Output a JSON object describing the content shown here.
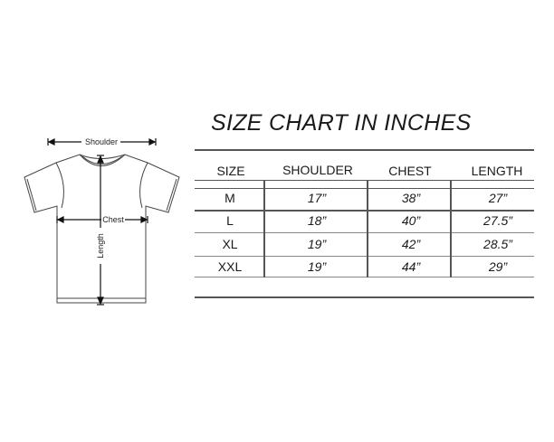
{
  "title": "SIZE CHART IN INCHES",
  "diagram": {
    "shoulder_label": "Shoulder",
    "chest_label": "Chest",
    "length_label": "Length",
    "icon": "t-shirt-outline"
  },
  "table": {
    "headers": [
      "SIZE",
      "SHOULDER",
      "CHEST",
      "LENGTH"
    ],
    "rows": [
      [
        "M",
        "17”",
        "38”",
        "27”"
      ],
      [
        "L",
        "18”",
        "40”",
        "27.5”"
      ],
      [
        "XL",
        "19”",
        "42”",
        "28.5”"
      ],
      [
        "XXL",
        "19”",
        "44”",
        "29”"
      ]
    ]
  }
}
